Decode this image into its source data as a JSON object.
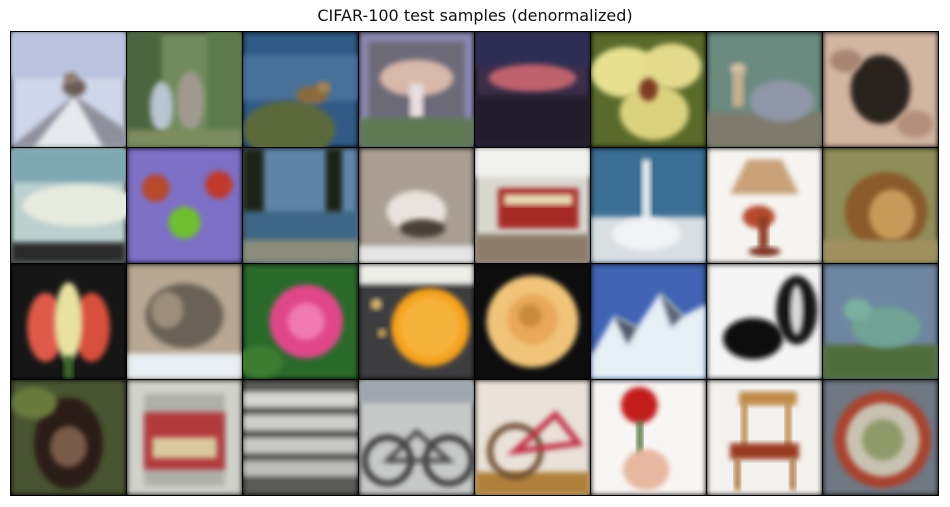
{
  "figure": {
    "title": "CIFAR-100 test samples (denormalized)"
  },
  "grid": {
    "rows": 4,
    "cols": 8
  }
}
